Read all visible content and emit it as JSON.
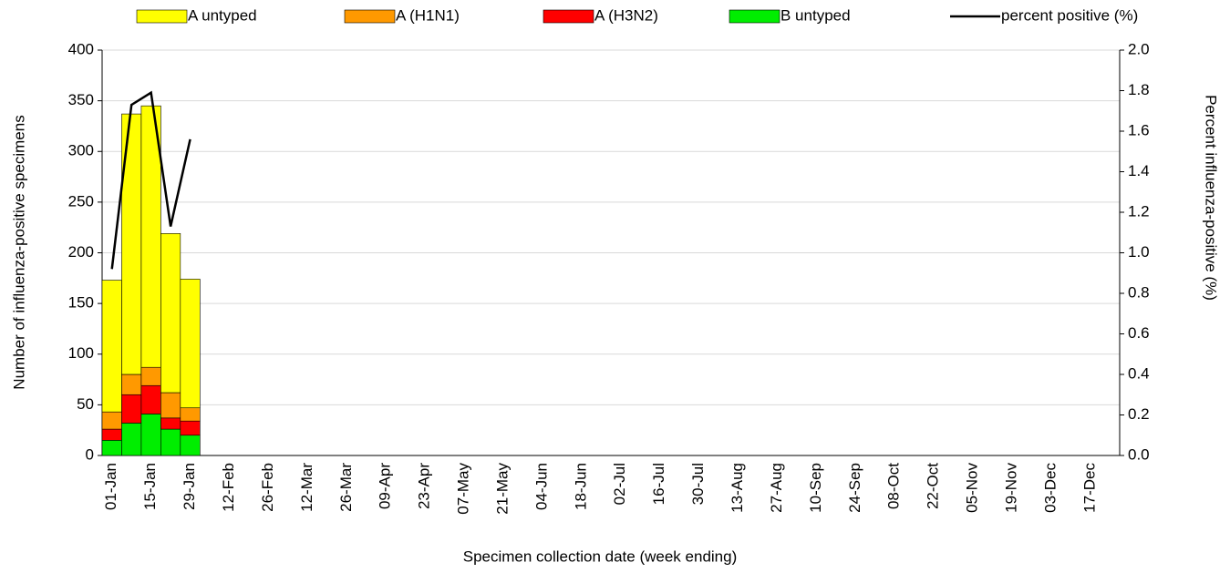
{
  "chart_data": {
    "type": "bar",
    "stacked": true,
    "x_label": "Specimen collection date (week ending)",
    "y_label": "Number of influenza-positive specimens",
    "y2_label": "Percent influenza-positive (%)",
    "categories": [
      "01-Jan",
      null,
      "15-Jan",
      null,
      "29-Jan",
      null,
      "12-Feb",
      null,
      "26-Feb",
      null,
      "12-Mar",
      null,
      "26-Mar",
      null,
      "09-Apr",
      null,
      "23-Apr",
      null,
      "07-May",
      null,
      "21-May",
      null,
      "04-Jun",
      null,
      "18-Jun",
      null,
      "02-Jul",
      null,
      "16-Jul",
      null,
      "30-Jul",
      null,
      "13-Aug",
      null,
      "27-Aug",
      null,
      "10-Sep",
      null,
      "24-Sep",
      null,
      "08-Oct",
      null,
      "22-Oct",
      null,
      "05-Nov",
      null,
      "19-Nov",
      null,
      "03-Dec",
      null,
      "17-Dec",
      null
    ],
    "series": [
      {
        "name": "A untyped",
        "color": "#ffff00",
        "values": [
          130,
          257,
          258,
          157,
          127,
          null,
          null,
          null,
          null,
          null,
          null,
          null,
          null,
          null,
          null,
          null,
          null,
          null,
          null,
          null,
          null,
          null,
          null,
          null,
          null,
          null,
          null,
          null,
          null,
          null,
          null,
          null,
          null,
          null,
          null,
          null,
          null,
          null,
          null,
          null,
          null,
          null,
          null,
          null,
          null,
          null,
          null,
          null,
          null,
          null,
          null,
          null
        ]
      },
      {
        "name": "A (H1N1)",
        "color": "#ff9900",
        "values": [
          17,
          20,
          18,
          25,
          13,
          null,
          null,
          null,
          null,
          null,
          null,
          null,
          null,
          null,
          null,
          null,
          null,
          null,
          null,
          null,
          null,
          null,
          null,
          null,
          null,
          null,
          null,
          null,
          null,
          null,
          null,
          null,
          null,
          null,
          null,
          null,
          null,
          null,
          null,
          null,
          null,
          null,
          null,
          null,
          null,
          null,
          null,
          null,
          null,
          null,
          null,
          null
        ]
      },
      {
        "name": "A (H3N2)",
        "color": "#ff0000",
        "values": [
          11,
          28,
          28,
          11,
          14,
          null,
          null,
          null,
          null,
          null,
          null,
          null,
          null,
          null,
          null,
          null,
          null,
          null,
          null,
          null,
          null,
          null,
          null,
          null,
          null,
          null,
          null,
          null,
          null,
          null,
          null,
          null,
          null,
          null,
          null,
          null,
          null,
          null,
          null,
          null,
          null,
          null,
          null,
          null,
          null,
          null,
          null,
          null,
          null,
          null,
          null,
          null
        ]
      },
      {
        "name": "B untyped",
        "color": "#00ee00",
        "values": [
          15,
          32,
          41,
          26,
          20,
          null,
          null,
          null,
          null,
          null,
          null,
          null,
          null,
          null,
          null,
          null,
          null,
          null,
          null,
          null,
          null,
          null,
          null,
          null,
          null,
          null,
          null,
          null,
          null,
          null,
          null,
          null,
          null,
          null,
          null,
          null,
          null,
          null,
          null,
          null,
          null,
          null,
          null,
          null,
          null,
          null,
          null,
          null,
          null,
          null,
          null,
          null
        ]
      },
      {
        "name": "percent positive (%)",
        "color": "#000000",
        "type": "line",
        "axis": "y2",
        "values": [
          0.92,
          1.73,
          1.79,
          1.13,
          1.56,
          null,
          null,
          null,
          null,
          null,
          null,
          null,
          null,
          null,
          null,
          null,
          null,
          null,
          null,
          null,
          null,
          null,
          null,
          null,
          null,
          null,
          null,
          null,
          null,
          null,
          null,
          null,
          null,
          null,
          null,
          null,
          null,
          null,
          null,
          null,
          null,
          null,
          null,
          null,
          null,
          null,
          null,
          null,
          null,
          null,
          null,
          null
        ]
      }
    ],
    "ylim": [
      0,
      400
    ],
    "yticks": [
      0,
      50,
      100,
      150,
      200,
      250,
      300,
      350,
      400
    ],
    "y2lim": [
      0,
      2
    ],
    "y2ticks": [
      {
        "value": 0,
        "label": "0.0"
      },
      {
        "value": 0.2,
        "label": "0.2"
      },
      {
        "value": 0.4,
        "label": "0.4"
      },
      {
        "value": 0.6,
        "label": "0.6"
      },
      {
        "value": 0.8,
        "label": "0.8"
      },
      {
        "value": 1,
        "label": "1.0"
      },
      {
        "value": 1.2,
        "label": "1.2"
      },
      {
        "value": 1.4,
        "label": "1.4"
      },
      {
        "value": 1.6,
        "label": "1.6"
      },
      {
        "value": 1.8,
        "label": "1.8"
      },
      {
        "value": 2,
        "label": "2.0"
      }
    ],
    "grid": true,
    "legend": "top"
  }
}
